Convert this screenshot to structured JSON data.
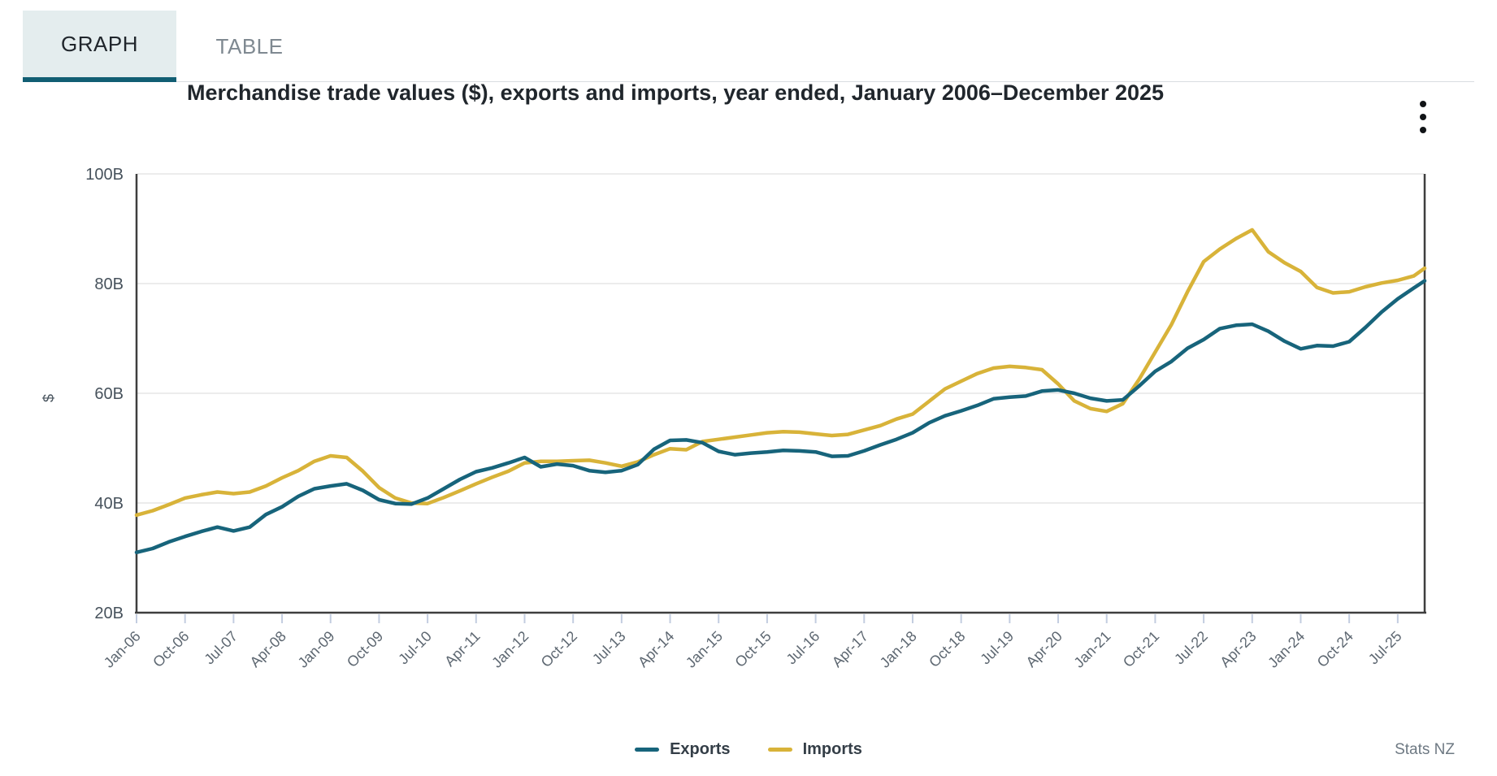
{
  "tabs": {
    "graph": "GRAPH",
    "table": "TABLE"
  },
  "footer": {
    "source": "Stats NZ"
  },
  "colors": {
    "active_tab_bg": "#e4edee",
    "tab_underline": "#115e73",
    "axis_line": "#3e3e3e",
    "gridline": "#e5e5e5",
    "tick_mark": "#c3cde0",
    "axis_text": "#47525c",
    "x_label_text": "#5d6771",
    "exports_teal": "#17647b",
    "imports_gold": "#d8b339"
  },
  "chart_data": {
    "type": "line",
    "title": "Merchandise trade values ($), exports and imports, year ended, January 2006–December 2025",
    "xlabel": "",
    "ylabel": "$",
    "ylim": [
      20,
      100
    ],
    "gridlines": "horizontal",
    "legend_position": "bottom",
    "y_ticks": [
      {
        "label": "20B",
        "value": 20
      },
      {
        "label": "40B",
        "value": 40
      },
      {
        "label": "60B",
        "value": 60
      },
      {
        "label": "80B",
        "value": 80
      },
      {
        "label": "100B",
        "value": 100
      }
    ],
    "x_ticks": [
      {
        "label": "Jan-06",
        "month": 0
      },
      {
        "label": "Oct-06",
        "month": 9
      },
      {
        "label": "Jul-07",
        "month": 18
      },
      {
        "label": "Apr-08",
        "month": 27
      },
      {
        "label": "Jan-09",
        "month": 36
      },
      {
        "label": "Oct-09",
        "month": 45
      },
      {
        "label": "Jul-10",
        "month": 54
      },
      {
        "label": "Apr-11",
        "month": 63
      },
      {
        "label": "Jan-12",
        "month": 72
      },
      {
        "label": "Oct-12",
        "month": 81
      },
      {
        "label": "Jul-13",
        "month": 90
      },
      {
        "label": "Apr-14",
        "month": 99
      },
      {
        "label": "Jan-15",
        "month": 108
      },
      {
        "label": "Oct-15",
        "month": 117
      },
      {
        "label": "Jul-16",
        "month": 126
      },
      {
        "label": "Apr-17",
        "month": 135
      },
      {
        "label": "Jan-18",
        "month": 144
      },
      {
        "label": "Oct-18",
        "month": 153
      },
      {
        "label": "Jul-19",
        "month": 162
      },
      {
        "label": "Apr-20",
        "month": 171
      },
      {
        "label": "Jan-21",
        "month": 180
      },
      {
        "label": "Oct-21",
        "month": 189
      },
      {
        "label": "Jul-22",
        "month": 198
      },
      {
        "label": "Apr-23",
        "month": 207
      },
      {
        "label": "Jan-24",
        "month": 216
      },
      {
        "label": "Oct-24",
        "month": 225
      },
      {
        "label": "Jul-25",
        "month": 234
      }
    ],
    "x_range_months": [
      "Jan-06",
      "Dec-25"
    ],
    "point_months": [
      0,
      3,
      6,
      9,
      12,
      15,
      18,
      21,
      24,
      27,
      30,
      33,
      36,
      39,
      42,
      45,
      48,
      51,
      54,
      57,
      60,
      63,
      66,
      69,
      72,
      75,
      78,
      81,
      84,
      87,
      90,
      93,
      96,
      99,
      102,
      105,
      108,
      111,
      114,
      117,
      120,
      123,
      126,
      129,
      132,
      135,
      138,
      141,
      144,
      147,
      150,
      153,
      156,
      159,
      162,
      165,
      168,
      171,
      174,
      177,
      180,
      183,
      186,
      189,
      192,
      195,
      198,
      201,
      204,
      207,
      210,
      213,
      216,
      219,
      222,
      225,
      228,
      231,
      234,
      237,
      239
    ],
    "point_labels": [
      "Jan-06",
      "Apr-06",
      "Jul-06",
      "Oct-06",
      "Jan-07",
      "Apr-07",
      "Jul-07",
      "Oct-07",
      "Jan-08",
      "Apr-08",
      "Jul-08",
      "Oct-08",
      "Jan-09",
      "Apr-09",
      "Jul-09",
      "Oct-09",
      "Jan-10",
      "Apr-10",
      "Jul-10",
      "Oct-10",
      "Jan-11",
      "Apr-11",
      "Jul-11",
      "Oct-11",
      "Jan-12",
      "Apr-12",
      "Jul-12",
      "Oct-12",
      "Jan-13",
      "Apr-13",
      "Jul-13",
      "Oct-13",
      "Jan-14",
      "Apr-14",
      "Jul-14",
      "Oct-14",
      "Jan-15",
      "Apr-15",
      "Jul-15",
      "Oct-15",
      "Jan-16",
      "Apr-16",
      "Jul-16",
      "Oct-16",
      "Jan-17",
      "Apr-17",
      "Jul-17",
      "Oct-17",
      "Jan-18",
      "Apr-18",
      "Jul-18",
      "Oct-18",
      "Jan-19",
      "Apr-19",
      "Jul-19",
      "Oct-19",
      "Jan-20",
      "Apr-20",
      "Jul-20",
      "Oct-20",
      "Jan-21",
      "Apr-21",
      "Jul-21",
      "Oct-21",
      "Jan-22",
      "Apr-22",
      "Jul-22",
      "Oct-22",
      "Jan-23",
      "Apr-23",
      "Jul-23",
      "Oct-23",
      "Jan-24",
      "Apr-24",
      "Jul-24",
      "Oct-24",
      "Jan-25",
      "Apr-25",
      "Jul-25",
      "Oct-25",
      "Dec-25"
    ],
    "series": [
      {
        "name": "Exports",
        "color": "#17647b",
        "values": [
          31.0,
          31.7,
          32.9,
          33.9,
          34.8,
          35.6,
          34.9,
          35.6,
          37.9,
          39.3,
          41.2,
          42.6,
          43.1,
          43.5,
          42.3,
          40.6,
          39.9,
          39.8,
          40.9,
          42.6,
          44.3,
          45.7,
          46.4,
          47.3,
          48.3,
          46.6,
          47.1,
          46.8,
          45.9,
          45.6,
          45.9,
          47.0,
          49.8,
          51.4,
          51.5,
          51.0,
          49.4,
          48.8,
          49.1,
          49.3,
          49.6,
          49.5,
          49.3,
          48.5,
          48.6,
          49.5,
          50.6,
          51.6,
          52.8,
          54.6,
          55.9,
          56.8,
          57.8,
          59.0,
          59.3,
          59.5,
          60.4,
          60.6,
          60.0,
          59.1,
          58.6,
          58.8,
          61.3,
          64.0,
          65.8,
          68.2,
          69.8,
          71.8,
          72.4,
          72.6,
          71.3,
          69.5,
          68.1,
          68.7,
          68.6,
          69.4,
          72.0,
          74.8,
          77.2,
          79.2,
          80.5
        ]
      },
      {
        "name": "Imports",
        "color": "#d8b339",
        "values": [
          37.8,
          38.6,
          39.7,
          40.9,
          41.5,
          42.0,
          41.7,
          42.0,
          43.1,
          44.6,
          45.9,
          47.6,
          48.6,
          48.3,
          45.8,
          42.8,
          40.9,
          40.0,
          39.9,
          41.0,
          42.2,
          43.5,
          44.7,
          45.8,
          47.3,
          47.6,
          47.6,
          47.7,
          47.8,
          47.3,
          46.7,
          47.5,
          48.8,
          49.9,
          49.7,
          51.2,
          51.6,
          52.0,
          52.4,
          52.8,
          53.0,
          52.9,
          52.6,
          52.3,
          52.5,
          53.3,
          54.1,
          55.3,
          56.2,
          58.5,
          60.8,
          62.2,
          63.6,
          64.6,
          64.9,
          64.7,
          64.3,
          61.7,
          58.6,
          57.2,
          56.7,
          58.1,
          62.5,
          67.5,
          72.5,
          78.5,
          84.0,
          86.3,
          88.2,
          89.8,
          85.8,
          83.8,
          82.2,
          79.3,
          78.3,
          78.5,
          79.4,
          80.1,
          80.6,
          81.4,
          82.8
        ]
      }
    ]
  }
}
